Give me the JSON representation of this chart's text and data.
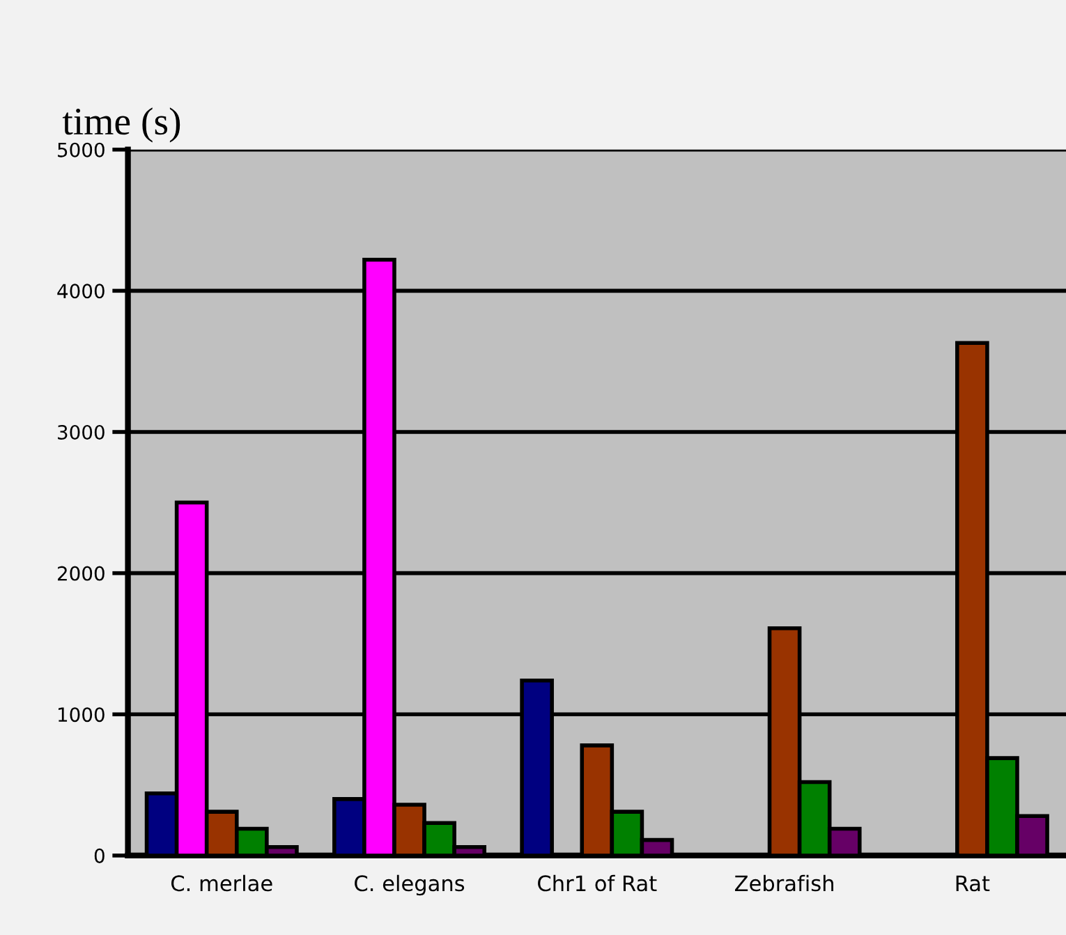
{
  "chart_data": {
    "type": "bar",
    "ylabel": "time (s)",
    "categories": [
      "C. merlae",
      "C. elegans",
      "Chr1 of Rat",
      "Zebrafish",
      "Rat"
    ],
    "series": [
      {
        "color": "#000080",
        "values": [
          440,
          400,
          1240,
          null,
          null
        ]
      },
      {
        "color": "#ff00ff",
        "values": [
          2500,
          4220,
          null,
          null,
          null
        ]
      },
      {
        "color": "#993300",
        "values": [
          310,
          360,
          780,
          1610,
          3630
        ]
      },
      {
        "color": "#008000",
        "values": [
          190,
          230,
          310,
          520,
          690
        ]
      },
      {
        "color": "#660066",
        "values": [
          60,
          60,
          110,
          190,
          280
        ]
      }
    ],
    "ylim": [
      0,
      5000
    ],
    "yticks": [
      0,
      1000,
      2000,
      3000,
      4000,
      5000
    ],
    "grid": "y"
  }
}
